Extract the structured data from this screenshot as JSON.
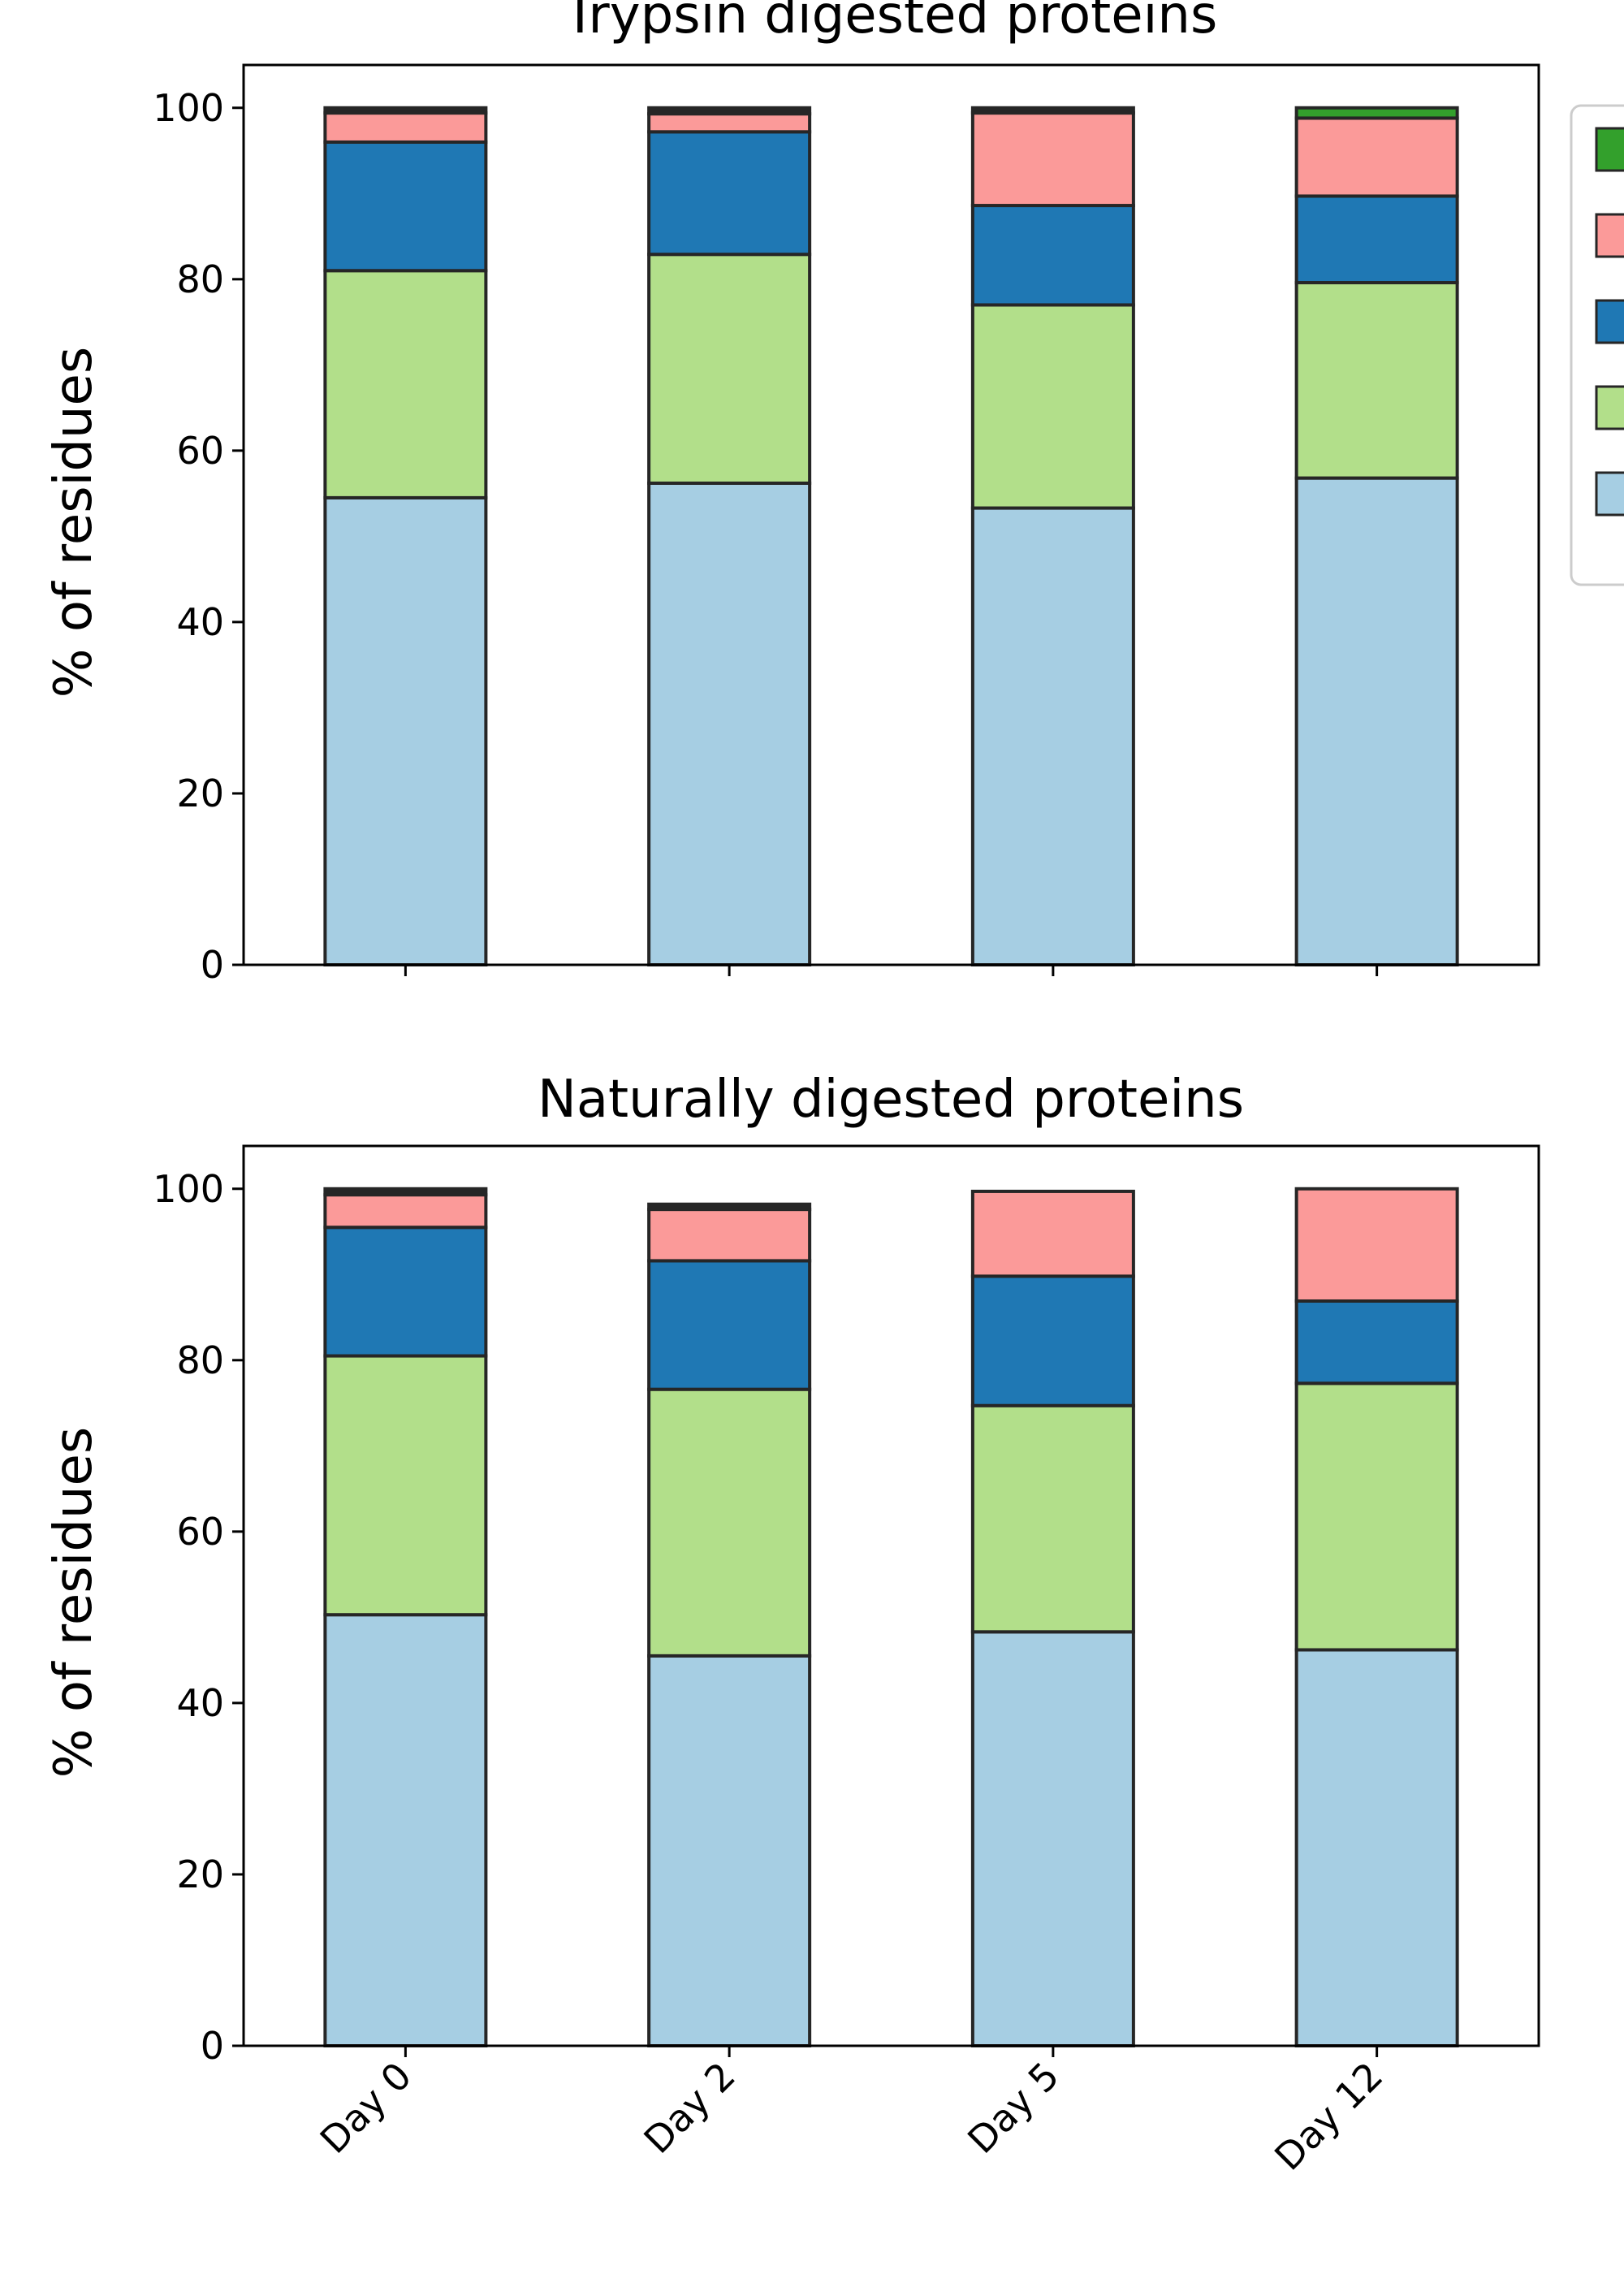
{
  "chart_data": [
    {
      "type": "bar",
      "stacked": true,
      "title": "Trypsin digested proteins",
      "ylabel": "% of residues",
      "xlabel": "",
      "ylim": [
        0,
        105
      ],
      "yticks": [
        0,
        20,
        40,
        60,
        80,
        100
      ],
      "categories": [
        "Day 0",
        "Day 2",
        "Day 5",
        "Day 12"
      ],
      "show_category_labels": false,
      "legend": "right",
      "series": [
        {
          "color": "#a6cee3",
          "values": [
            54.5,
            56.2,
            53.3,
            56.8
          ]
        },
        {
          "color": "#b2df8a",
          "values": [
            26.5,
            26.7,
            23.7,
            22.8
          ]
        },
        {
          "color": "#1f78b4",
          "values": [
            15.0,
            14.3,
            11.6,
            10.1
          ]
        },
        {
          "color": "#fb9a99",
          "values": [
            3.4,
            2.1,
            10.8,
            9.1
          ]
        },
        {
          "color": "#33a02c",
          "values": [
            0.0,
            0.0,
            0.0,
            1.2
          ]
        },
        {
          "color": "#262626",
          "values": [
            0.6,
            0.7,
            0.6,
            0.0
          ]
        }
      ]
    },
    {
      "type": "bar",
      "stacked": true,
      "title": "Naturally digested proteins",
      "ylabel": "% of residues",
      "xlabel": "",
      "ylim": [
        0,
        105
      ],
      "yticks": [
        0,
        20,
        40,
        60,
        80,
        100
      ],
      "categories": [
        "Day 0",
        "Day 2",
        "Day 5",
        "Day 12"
      ],
      "show_category_labels": true,
      "series": [
        {
          "color": "#a6cee3",
          "values": [
            50.3,
            45.5,
            48.3,
            46.2
          ]
        },
        {
          "color": "#b2df8a",
          "values": [
            30.2,
            31.1,
            26.4,
            31.1
          ]
        },
        {
          "color": "#1f78b4",
          "values": [
            15.0,
            15.0,
            15.1,
            9.6
          ]
        },
        {
          "color": "#fb9a99",
          "values": [
            3.8,
            6.0,
            9.9,
            13.1
          ]
        },
        {
          "color": "#33a02c",
          "values": [
            0.0,
            0.0,
            0.0,
            0.0
          ]
        },
        {
          "color": "#262626",
          "values": [
            0.7,
            0.6,
            0.0,
            0.0
          ]
        }
      ]
    }
  ],
  "legend_order": [
    4,
    3,
    2,
    1,
    0
  ]
}
